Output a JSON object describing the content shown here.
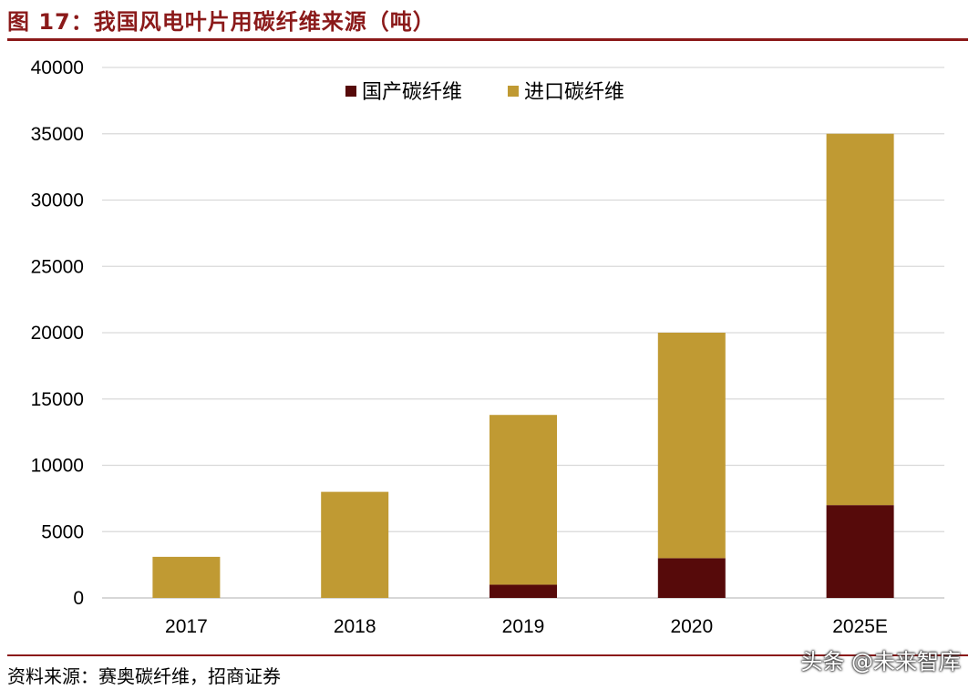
{
  "figure": {
    "title": "图 17：我国风电叶片用碳纤维来源（吨）",
    "source": "资料来源：赛奥碳纤维，招商证券",
    "watermark": "头条 @未来智库"
  },
  "colors": {
    "domestic": "#560A0A",
    "imported": "#C09A33",
    "accent": "#8B1A1A",
    "grid": "#D9D9D9"
  },
  "chart_data": {
    "type": "bar",
    "stacked": true,
    "title": "",
    "xlabel": "",
    "ylabel": "",
    "categories": [
      "2017",
      "2018",
      "2019",
      "2020",
      "2025E"
    ],
    "series": [
      {
        "name": "国产碳纤维",
        "values": [
          0,
          0,
          1000,
          3000,
          7000
        ]
      },
      {
        "name": "进口碳纤维",
        "values": [
          3100,
          8000,
          12800,
          17000,
          28000
        ]
      }
    ],
    "ylim": [
      0,
      40000
    ],
    "yticks": [
      0,
      5000,
      10000,
      15000,
      20000,
      25000,
      30000,
      35000,
      40000
    ],
    "grid": true,
    "legend": "top-center"
  }
}
